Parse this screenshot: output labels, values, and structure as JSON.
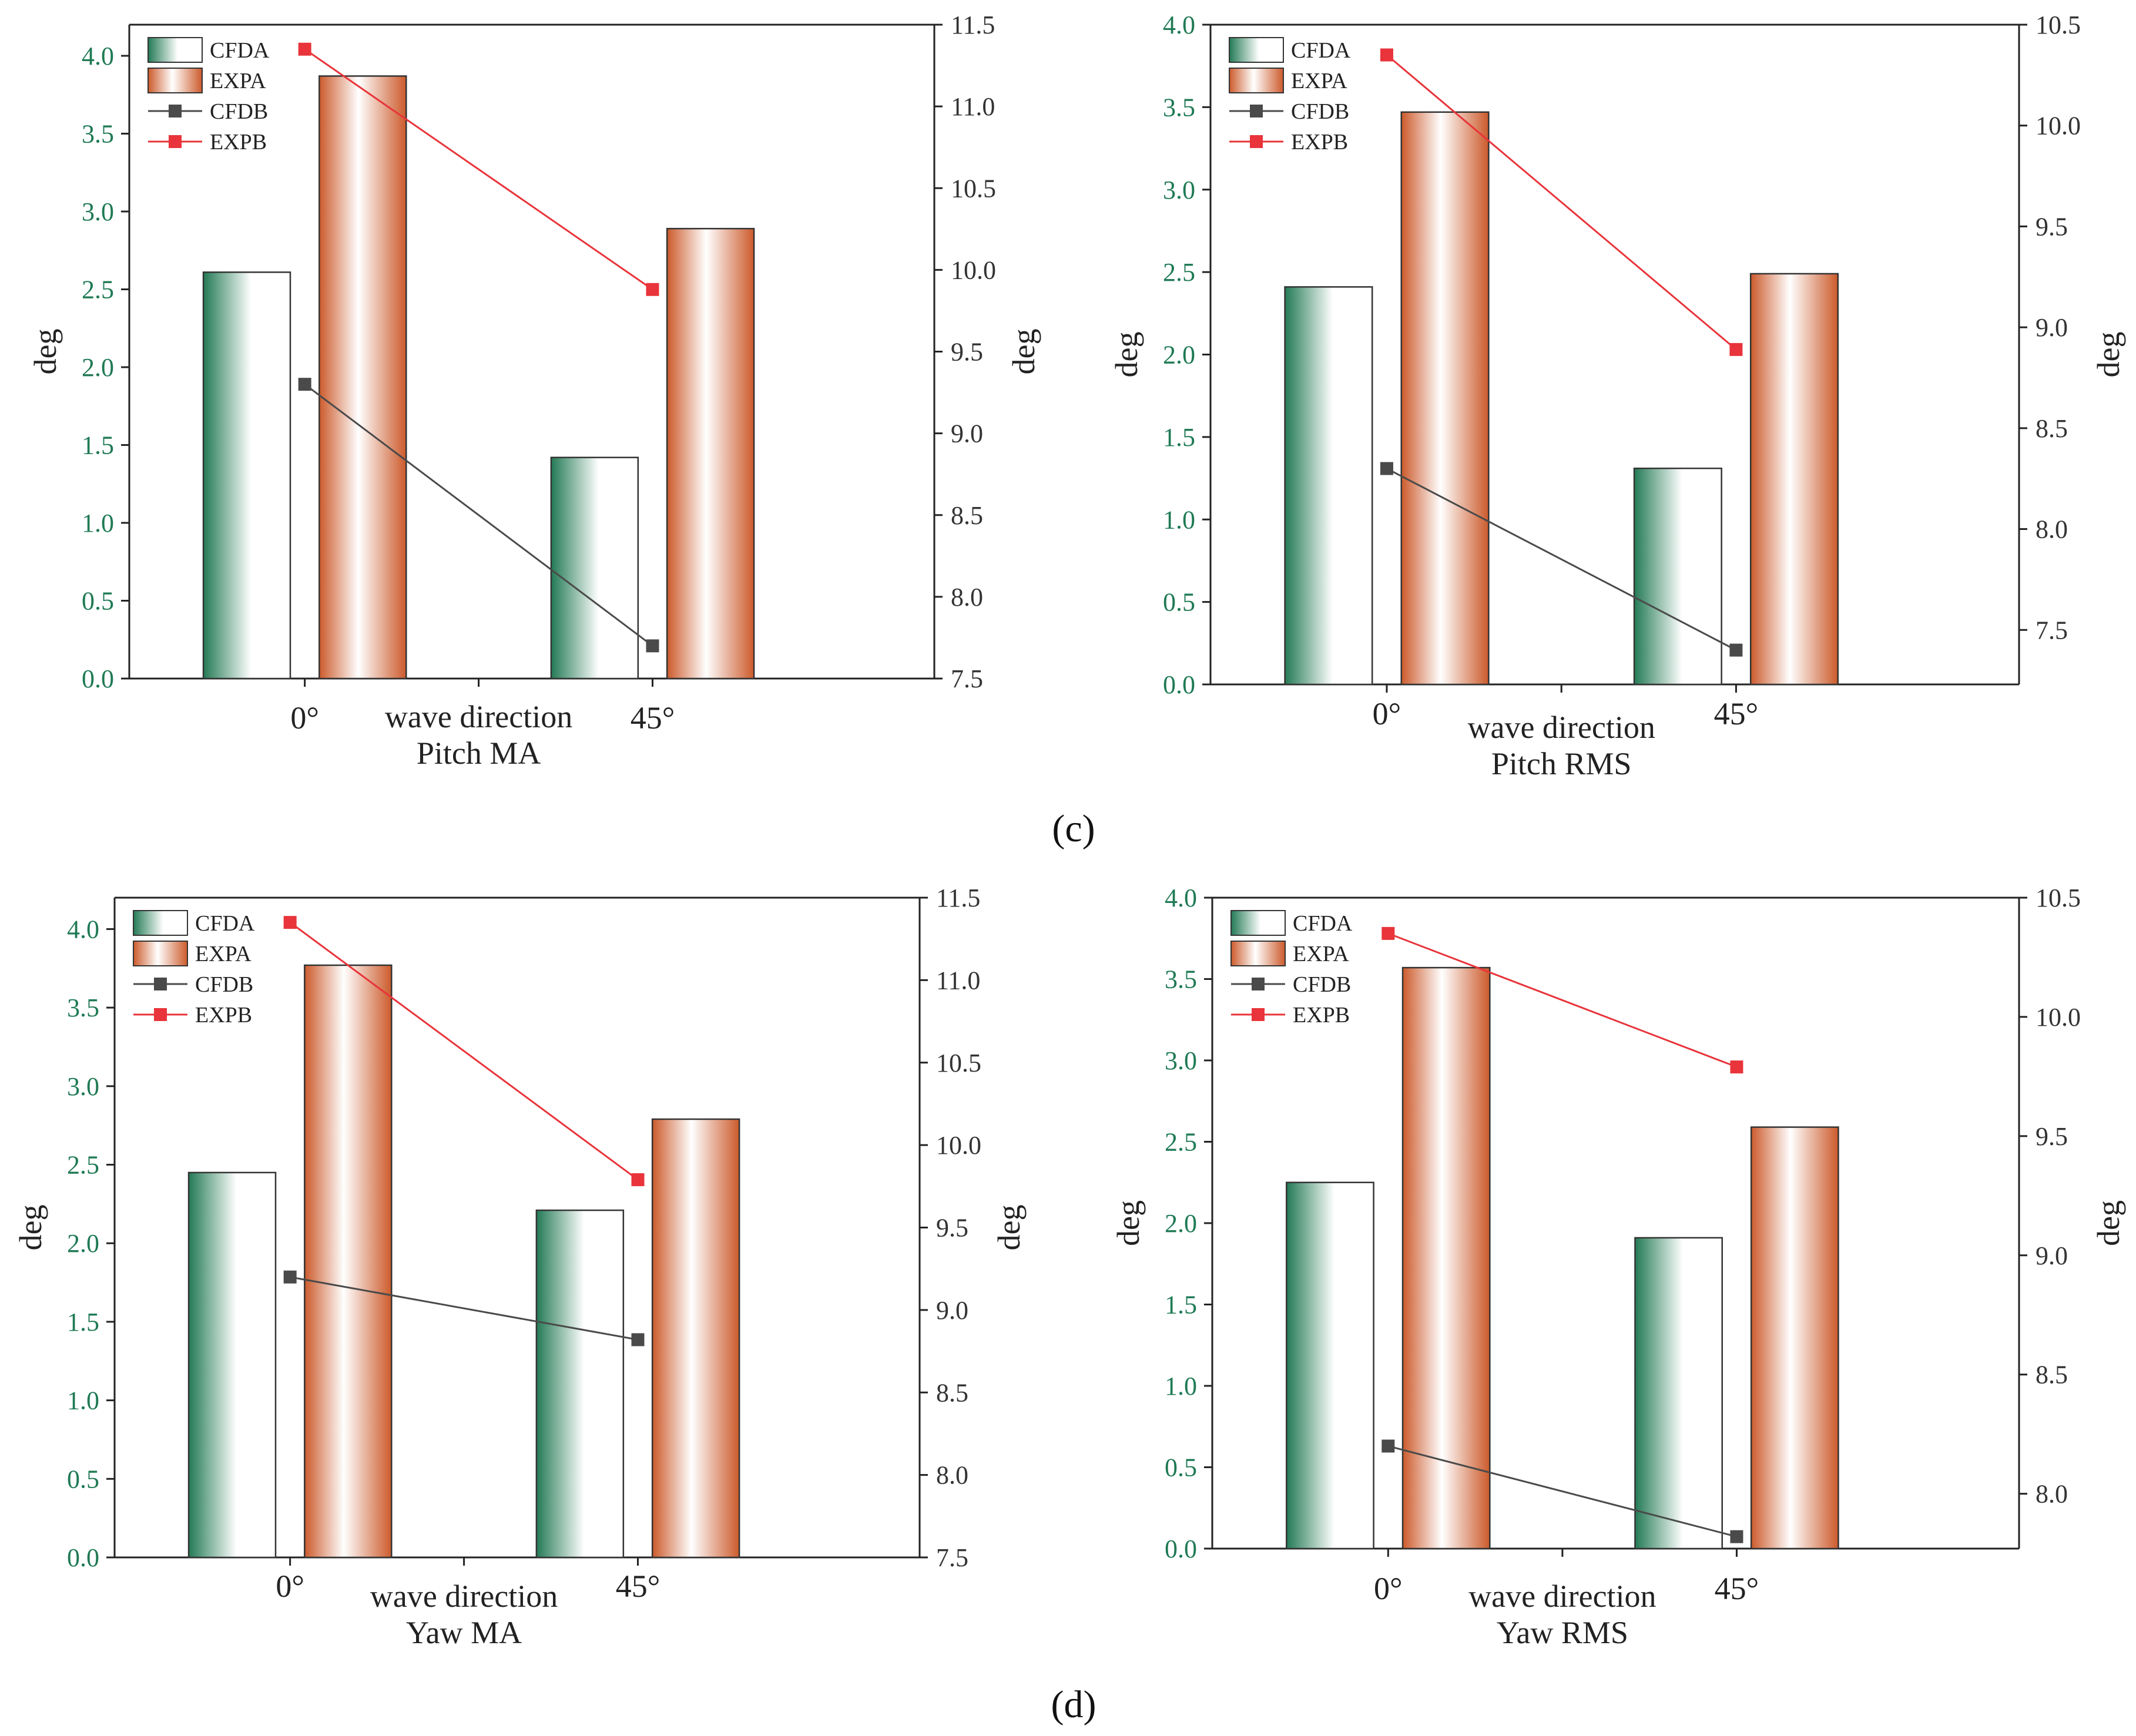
{
  "figure_labels": [
    "(c)",
    "(d)"
  ],
  "colors": {
    "cfd_bar_dark": "#237a55",
    "exp_bar_dark": "#cc5a2b",
    "cfdb_line": "#4a4a4a",
    "expb_line": "#e8343a",
    "left_axis_text": "#1f7a54"
  },
  "chart_data": [
    {
      "type": "bar",
      "title": "Pitch MA",
      "xlabel": "wave direction",
      "ylabel": "deg",
      "ylabel_right": "deg",
      "categories": [
        "0°",
        "45°"
      ],
      "ylim": [
        0,
        4.2
      ],
      "yticks": [
        "0.0",
        "0.5",
        "1.0",
        "1.5",
        "2.0",
        "2.5",
        "3.0",
        "3.5",
        "4.0"
      ],
      "y2lim": [
        7.5,
        11.5
      ],
      "y2ticks": [
        "7.5",
        "8.0",
        "8.5",
        "9.0",
        "9.5",
        "10.0",
        "10.5",
        "11.0",
        "11.5"
      ],
      "series": [
        {
          "name": "CFDA",
          "kind": "bar",
          "axis": "left",
          "values": [
            2.61,
            1.42
          ]
        },
        {
          "name": "EXPA",
          "kind": "bar",
          "axis": "left",
          "values": [
            3.87,
            2.89
          ]
        },
        {
          "name": "CFDB",
          "kind": "line",
          "axis": "right",
          "values": [
            9.3,
            7.7
          ]
        },
        {
          "name": "EXPB",
          "kind": "line",
          "axis": "right",
          "values": [
            11.35,
            9.88
          ]
        }
      ]
    },
    {
      "type": "bar",
      "title": "Pitch RMS",
      "xlabel": "wave direction",
      "ylabel": "deg",
      "ylabel_right": "deg",
      "categories": [
        "0°",
        "45°"
      ],
      "ylim": [
        0,
        4.0
      ],
      "yticks": [
        "0.0",
        "0.5",
        "1.0",
        "1.5",
        "2.0",
        "2.5",
        "3.0",
        "3.5",
        "4.0"
      ],
      "y2lim": [
        7.23,
        10.5
      ],
      "y2ticks": [
        "7.5",
        "8.0",
        "8.5",
        "9.0",
        "9.5",
        "10.0",
        "10.5"
      ],
      "series": [
        {
          "name": "CFDA",
          "kind": "bar",
          "axis": "left",
          "values": [
            2.41,
            1.31
          ]
        },
        {
          "name": "EXPA",
          "kind": "bar",
          "axis": "left",
          "values": [
            3.47,
            2.49
          ]
        },
        {
          "name": "CFDB",
          "kind": "line",
          "axis": "right",
          "values": [
            8.3,
            7.4
          ]
        },
        {
          "name": "EXPB",
          "kind": "line",
          "axis": "right",
          "values": [
            10.35,
            8.89
          ]
        }
      ]
    },
    {
      "type": "bar",
      "title": "Yaw MA",
      "xlabel": "wave direction",
      "ylabel": "deg",
      "ylabel_right": "deg",
      "categories": [
        "0°",
        "45°"
      ],
      "ylim": [
        0,
        4.2
      ],
      "yticks": [
        "0.0",
        "0.5",
        "1.0",
        "1.5",
        "2.0",
        "2.5",
        "3.0",
        "3.5",
        "4.0"
      ],
      "y2lim": [
        7.5,
        11.5
      ],
      "y2ticks": [
        "7.5",
        "8.0",
        "8.5",
        "9.0",
        "9.5",
        "10.0",
        "10.5",
        "11.0",
        "11.5"
      ],
      "series": [
        {
          "name": "CFDA",
          "kind": "bar",
          "axis": "left",
          "values": [
            2.45,
            2.21
          ]
        },
        {
          "name": "EXPA",
          "kind": "bar",
          "axis": "left",
          "values": [
            3.77,
            2.79
          ]
        },
        {
          "name": "CFDB",
          "kind": "line",
          "axis": "right",
          "values": [
            9.2,
            8.82
          ]
        },
        {
          "name": "EXPB",
          "kind": "line",
          "axis": "right",
          "values": [
            11.35,
            9.79
          ]
        }
      ]
    },
    {
      "type": "bar",
      "title": "Yaw RMS",
      "xlabel": "wave direction",
      "ylabel": "deg",
      "ylabel_right": "deg",
      "categories": [
        "0°",
        "45°"
      ],
      "ylim": [
        0,
        4.0
      ],
      "yticks": [
        "0.0",
        "0.5",
        "1.0",
        "1.5",
        "2.0",
        "2.5",
        "3.0",
        "3.5",
        "4.0"
      ],
      "y2lim": [
        7.77,
        10.5
      ],
      "y2ticks": [
        "8.0",
        "8.5",
        "9.0",
        "9.5",
        "10.0",
        "10.5"
      ],
      "series": [
        {
          "name": "CFDA",
          "kind": "bar",
          "axis": "left",
          "values": [
            2.25,
            1.91
          ]
        },
        {
          "name": "EXPA",
          "kind": "bar",
          "axis": "left",
          "values": [
            3.57,
            2.59
          ]
        },
        {
          "name": "CFDB",
          "kind": "line",
          "axis": "right",
          "values": [
            8.2,
            7.82
          ]
        },
        {
          "name": "EXPB",
          "kind": "line",
          "axis": "right",
          "values": [
            10.35,
            9.79
          ]
        }
      ]
    }
  ]
}
